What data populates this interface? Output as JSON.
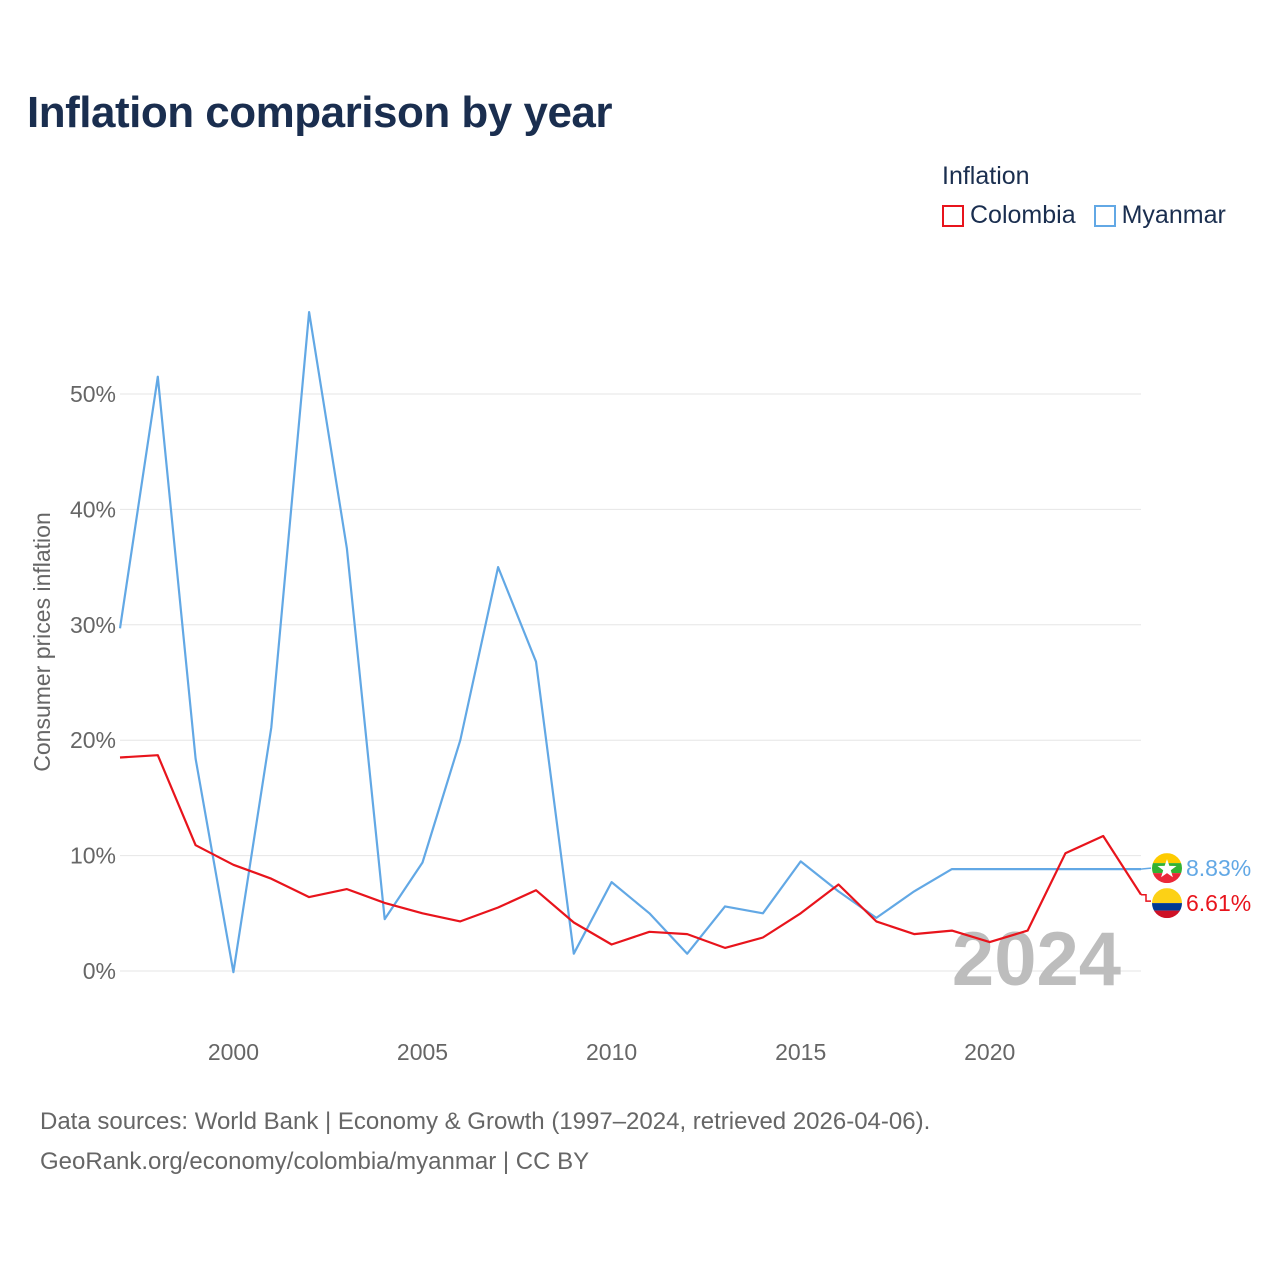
{
  "title": "Inflation comparison by year",
  "legend": {
    "title": "Inflation",
    "items": [
      {
        "label": "Colombia",
        "color": "#e8141c"
      },
      {
        "label": "Myanmar",
        "color": "#62a8e5"
      }
    ]
  },
  "chart_data": {
    "type": "line",
    "title": "Inflation comparison by year",
    "xlabel": "",
    "ylabel": "Consumer prices inflation",
    "xlim": [
      1997,
      2024
    ],
    "ylim": [
      -5,
      57
    ],
    "x_ticks": [
      2000,
      2005,
      2010,
      2015,
      2020
    ],
    "y_ticks": [
      0,
      10,
      20,
      30,
      40,
      50
    ],
    "y_tick_labels": [
      "0%",
      "10%",
      "20%",
      "30%",
      "40%",
      "50%"
    ],
    "x_tick_labels": [
      "2000",
      "2005",
      "2010",
      "2015",
      "2020"
    ],
    "grid": true,
    "current_year_label": "2024",
    "series": [
      {
        "name": "Colombia",
        "color": "#e8141c",
        "x": [
          1997,
          1998,
          1999,
          2000,
          2001,
          2002,
          2003,
          2004,
          2005,
          2006,
          2007,
          2008,
          2009,
          2010,
          2011,
          2012,
          2013,
          2014,
          2015,
          2016,
          2017,
          2018,
          2019,
          2020,
          2021,
          2022,
          2023,
          2024
        ],
        "values": [
          18.5,
          18.7,
          10.9,
          9.2,
          8.0,
          6.4,
          7.1,
          5.9,
          5.0,
          4.3,
          5.5,
          7.0,
          4.2,
          2.3,
          3.4,
          3.2,
          2.0,
          2.9,
          5.0,
          7.5,
          4.3,
          3.2,
          3.5,
          2.5,
          3.5,
          10.2,
          11.7,
          6.61
        ],
        "end_label": "6.61%"
      },
      {
        "name": "Myanmar",
        "color": "#62a8e5",
        "x": [
          1997,
          1998,
          1999,
          2000,
          2001,
          2002,
          2003,
          2004,
          2005,
          2006,
          2007,
          2008,
          2009,
          2010,
          2011,
          2012,
          2013,
          2014,
          2015,
          2016,
          2017,
          2018,
          2019
        ],
        "values": [
          29.7,
          51.5,
          18.4,
          -0.1,
          21.1,
          57.1,
          36.6,
          4.5,
          9.4,
          20.0,
          35.0,
          26.8,
          1.5,
          7.7,
          5.0,
          1.5,
          5.6,
          5.0,
          9.5,
          6.9,
          4.6,
          6.9,
          8.83
        ],
        "carry_to_x": 2024,
        "end_label": "8.83%"
      }
    ]
  },
  "source": {
    "line1": "Data sources: World Bank | Economy & Growth (1997–2024, retrieved 2026-04-06).",
    "line2": "GeoRank.org/economy/colombia/myanmar | CC BY"
  }
}
